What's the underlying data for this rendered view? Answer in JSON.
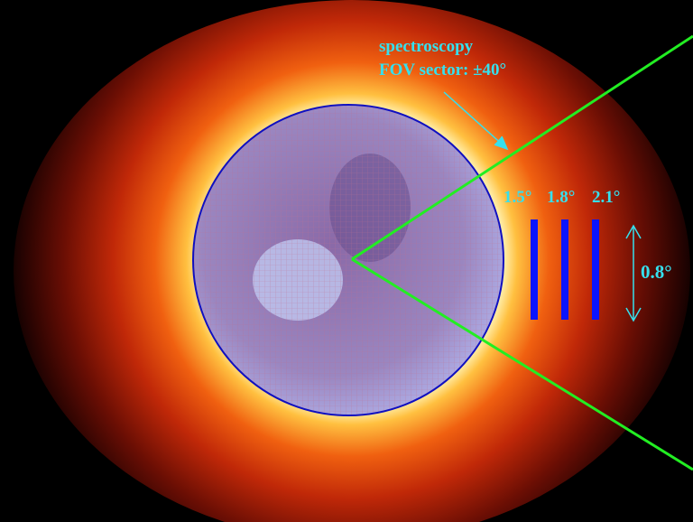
{
  "annotation": {
    "line1": "spectroscopy",
    "line2": "FOV sector: ±40°"
  },
  "slits": [
    "1.5°",
    "1.8°",
    "2.1°"
  ],
  "slit_height": "0.8°"
}
